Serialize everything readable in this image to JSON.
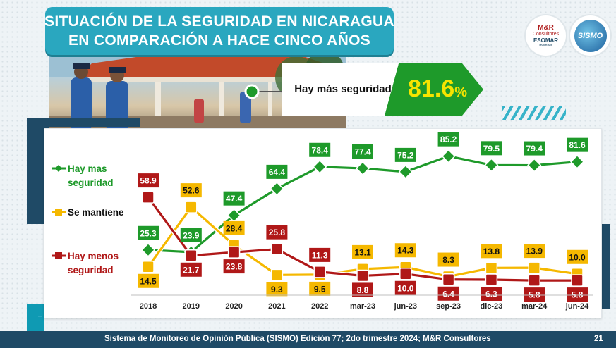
{
  "title": {
    "line1": "SITUACIÓN DE LA SEGURIDAD EN NICARAGUA",
    "line2": "EN COMPARACIÓN A HACE CINCO AÑOS"
  },
  "logos": {
    "mr_line1": "M&R",
    "mr_line2": "Consultores",
    "mr_line3": "ESOMAR",
    "mr_line4": "member",
    "sismo": "SISMO"
  },
  "highlight": {
    "label": "Hay más seguridad",
    "value": "81.6",
    "unit": "%"
  },
  "colors": {
    "green": "#1e9a2a",
    "red": "#b01818",
    "yellow": "#f5b800",
    "teal": "#2aa7bf",
    "navy": "#1f4a66"
  },
  "chart_data": {
    "type": "line",
    "categories": [
      "2018",
      "2019",
      "2020",
      "2021",
      "2022",
      "mar-23",
      "jun-23",
      "sep-23",
      "dic-23",
      "mar-24",
      "jun-24"
    ],
    "series": [
      {
        "name": "Hay mas seguridad",
        "color": "#1e9a2a",
        "values": [
          25.3,
          23.9,
          47.4,
          64.4,
          78.4,
          77.4,
          75.2,
          85.2,
          79.5,
          79.4,
          81.6
        ]
      },
      {
        "name": "Se mantiene",
        "color": "#f5b800",
        "values": [
          14.5,
          52.6,
          28.4,
          9.3,
          9.5,
          13.1,
          14.3,
          8.3,
          13.8,
          13.9,
          10.0
        ]
      },
      {
        "name": "Hay menos seguridad",
        "color": "#b01818",
        "values": [
          58.9,
          21.7,
          23.8,
          25.8,
          11.3,
          8.8,
          10.0,
          6.4,
          6.3,
          5.8,
          5.8
        ]
      }
    ],
    "data_labels": {
      "Hay mas seguridad": [
        "25.3",
        "23.9",
        "47.4",
        "64.4",
        "78.4",
        "77.4",
        "75.2",
        "85.2",
        "79.5",
        "79.4",
        "81.6"
      ],
      "Se mantiene": [
        "14.5",
        "52.6",
        "28.4",
        "9.3",
        "9.5",
        "13.1",
        "14.3",
        "8.3",
        "13.8",
        "13.9",
        "10.0"
      ],
      "Hay menos seguridad": [
        "58.9",
        "21.7",
        "23.8",
        "25.8",
        "11.3",
        "8.8",
        "10.0",
        "6.4",
        "6.3",
        "5.8",
        "5.8"
      ]
    },
    "legend": {
      "placement": "left",
      "entries": [
        {
          "lines": [
            "Hay mas",
            "seguridad"
          ],
          "series": "Hay mas seguridad"
        },
        {
          "lines": [
            "Se mantiene"
          ],
          "series": "Se mantiene"
        },
        {
          "lines": [
            "Hay menos",
            "seguridad"
          ],
          "series": "Hay menos seguridad"
        }
      ]
    },
    "ylim": [
      0,
      90
    ],
    "grid": false
  },
  "footer": {
    "text": "Sistema de Monitoreo de Opinión Pública (SISMO) Edición 77; 2do trimestre 2024; M&R Consultores",
    "page": "21"
  }
}
